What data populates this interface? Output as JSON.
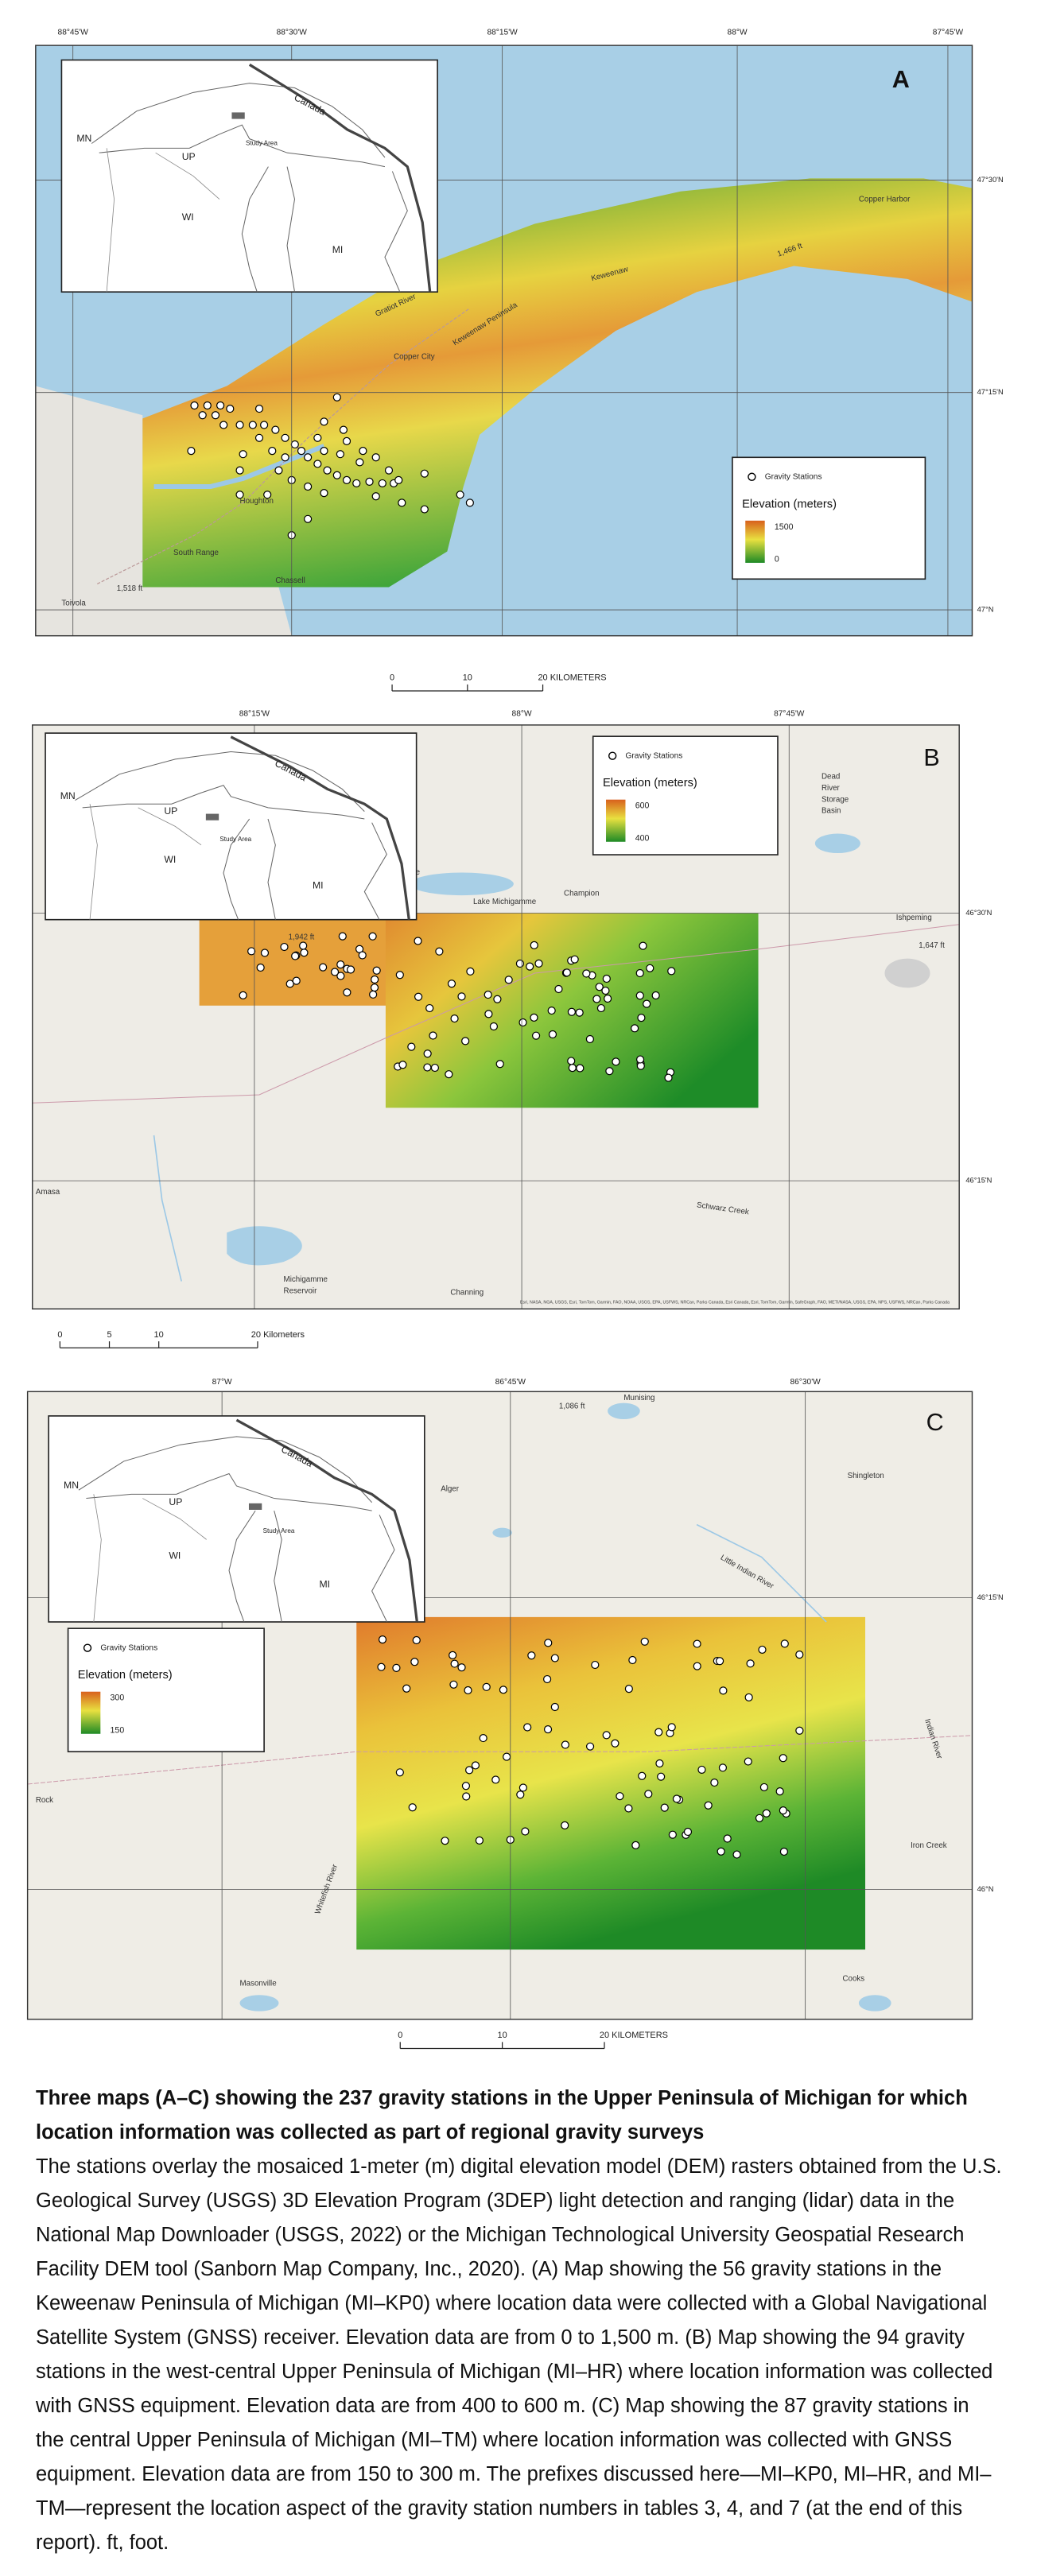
{
  "maps": [
    {
      "panel": "A",
      "top_labels": [
        "88°45'W",
        "88°30'W",
        "88°15'W",
        "88°W",
        "87°45'W"
      ],
      "right_labels": [
        "47°30'N",
        "47°15'N",
        "47°N"
      ],
      "places": [
        "Copper Harbor",
        "1,466 ft",
        "Keweenaw",
        "Keweenaw Peninsula",
        "Gratiot River",
        "Copper City",
        "Houghton",
        "South Range",
        "1,518 ft",
        "Toivola",
        "Chassell"
      ],
      "inset": [
        "Canada",
        "MN",
        "UP",
        "WI",
        "MI",
        "Study Area"
      ],
      "legend": {
        "symbol": "Gravity Stations",
        "title": "Elevation (meters)",
        "high": "1500",
        "low": "0"
      },
      "scale_bar": [
        "0",
        "10",
        "20 KILOMETERS"
      ]
    },
    {
      "panel": "B",
      "top_labels": [
        "88°15'W",
        "88°W",
        "87°45'W"
      ],
      "right_labels": [
        "46°30'N",
        "46°15'N"
      ],
      "places": [
        "Michigamme",
        "Lake Michigamme",
        "Champion",
        "Ishpeming",
        "Dead",
        "River",
        "Storage",
        "Basin",
        "1,942 ft",
        "1,647 ft",
        "Amasa",
        "Schwarz Creek",
        "Michigamme",
        "Reservoir",
        "Channing"
      ],
      "inset": [
        "Canada",
        "MN",
        "UP",
        "WI",
        "MI",
        "Study Area"
      ],
      "legend": {
        "symbol": "Gravity Stations",
        "title": "Elevation (meters)",
        "high": "600",
        "low": "400"
      },
      "scale_bar": [
        "0",
        "5",
        "10",
        "20 Kilometers"
      ],
      "attribution": "Esri, NASA, NGA, USGS, Esri, TomTom, Garmin, FAO, NOAA, USGS, EPA, USFWS, NRCan, Parks Canada, Esri Canada, Esri, TomTom, Garmin, SafeGraph, FAO, METI/NASA, USGS, EPA, NPS, USFWS, NRCan, Parks Canada"
    },
    {
      "panel": "C",
      "top_labels": [
        "87°W",
        "86°45'W",
        "86°30'W"
      ],
      "right_labels": [
        "46°15'N",
        "46°N"
      ],
      "places": [
        "1,086 ft",
        "Munising",
        "Alger",
        "Shingleton",
        "Little Indian River",
        "Indian River",
        "Rock",
        "Iron Creek",
        "Whitefish River",
        "Masonville",
        "Cooks"
      ],
      "inset": [
        "Canada",
        "MN",
        "UP",
        "WI",
        "MI",
        "Study Area"
      ],
      "legend": {
        "symbol": "Gravity Stations",
        "title": "Elevation (meters)",
        "high": "300",
        "low": "150"
      },
      "scale_bar": [
        "0",
        "10",
        "20 KILOMETERS"
      ]
    }
  ],
  "caption": {
    "title": "Three maps (A–C) showing the 237 gravity stations in the Upper Peninsula of Michigan for which location information was collected as part of regional gravity surveys",
    "body": "The stations overlay the mosaiced 1-meter (m) digital elevation model (DEM) rasters obtained from the U.S. Geological Survey (USGS) 3D Elevation Program (3DEP) light detection and ranging (lidar) data in the National Map Downloader (USGS, 2022) or the Michigan Technological University Geospatial Research Facility DEM tool (Sanborn Map Company, Inc., 2020). (A) Map showing the 56 gravity stations in the Keweenaw Peninsula of Michigan (MI–KP0) where location data were collected with a Global Navigational Satellite System (GNSS) receiver. Elevation data are from 0 to 1,500 m. (B) Map showing the 94 gravity stations in the west-central Upper Peninsula of Michigan (MI–HR) where location information was collected with GNSS equipment. Elevation data are from 400 to 600 m. (C) Map showing the 87 gravity stations in the central Upper Peninsula of Michigan (MI–TM) where location information was collected with GNSS equipment. Elevation data are from 150 to 300 m. The prefixes discussed here—MI–KP0, MI–HR, and MI–TM—represent the location aspect of the gravity station numbers in tables 3, 4, and 7 (at the end of this report). ft, foot."
  }
}
